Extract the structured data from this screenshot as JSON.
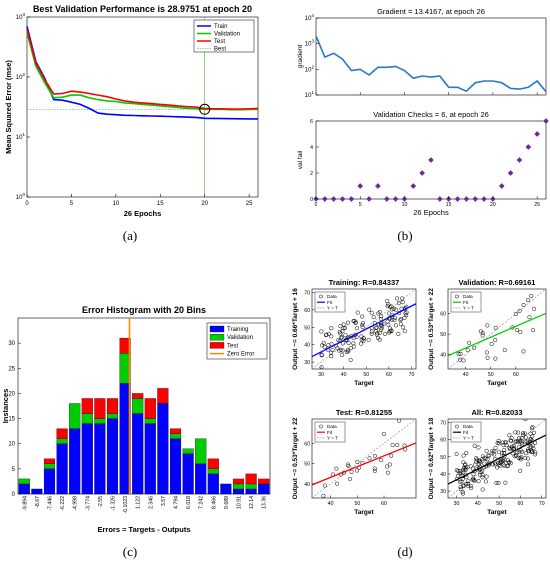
{
  "captions": {
    "a": "(a)",
    "b": "(b)",
    "c": "(c)",
    "d": "(d)"
  },
  "colors": {
    "train": "#0000ff",
    "validation": "#00cc00",
    "test": "#ff0000",
    "best": "#2ca02c",
    "zero_error": "#ff8800",
    "reg_fit_validation": "#00cc00",
    "gradient_line": "#2878c8",
    "fail_marker": "#8c1c8c"
  },
  "chart_data": [
    {
      "id": "performance",
      "type": "line",
      "title": "Best Validation Performance is 28.9751 at epoch 20",
      "xlabel": "26 Epochs",
      "ylabel": "Mean Squared Error  (mse)",
      "yscale": "log",
      "xlim": [
        0,
        26
      ],
      "ylim": [
        1,
        1000
      ],
      "xticks": [
        "0",
        "5",
        "10",
        "15",
        "20",
        "25"
      ],
      "yticks": [
        {
          "base": "10",
          "exp": "0"
        },
        {
          "base": "10",
          "exp": "1"
        },
        {
          "base": "10",
          "exp": "2"
        },
        {
          "base": "10",
          "exp": "3"
        }
      ],
      "legend_position": "top-right",
      "legend": [
        "Train",
        "Validation",
        "Test",
        "Best"
      ],
      "x": [
        0,
        1,
        2,
        3,
        4,
        5,
        6,
        7,
        8,
        9,
        10,
        11,
        12,
        13,
        14,
        15,
        16,
        17,
        18,
        19,
        20,
        21,
        22,
        23,
        24,
        25,
        26
      ],
      "series": [
        {
          "name": "Train",
          "values": [
            700,
            180,
            95,
            42,
            41,
            38,
            35,
            30,
            25,
            24,
            23.5,
            23,
            22.8,
            22.6,
            22.4,
            22.2,
            22,
            21.7,
            21.5,
            21.2,
            20.5,
            20.4,
            20.3,
            20.2,
            20.1,
            20,
            20
          ]
        },
        {
          "name": "Validation",
          "values": [
            550,
            150,
            80,
            45,
            46,
            50,
            50,
            45,
            42,
            40,
            39,
            37,
            36,
            35,
            34,
            33,
            32,
            31,
            30,
            29.5,
            28.9751,
            29,
            29,
            28.5,
            28.5,
            28.7,
            29
          ]
        },
        {
          "name": "Test",
          "values": [
            620,
            170,
            90,
            52,
            53,
            58,
            56,
            53,
            50,
            47,
            43,
            40,
            38,
            37,
            36,
            35,
            34,
            33,
            32,
            31.5,
            30,
            29.5,
            29.5,
            29.2,
            29.3,
            29.5,
            30
          ]
        }
      ],
      "best": {
        "epoch": 20,
        "value": 28.9751
      }
    },
    {
      "id": "gradient",
      "type": "line",
      "title": "Gradient = 13.4167, at epoch 26",
      "ylabel": "gradient",
      "yscale": "log",
      "xlim": [
        0,
        26
      ],
      "ylim": [
        10,
        10000
      ],
      "yticks": [
        {
          "base": "10",
          "exp": "1"
        },
        {
          "base": "10",
          "exp": "2"
        },
        {
          "base": "10",
          "exp": "3"
        },
        {
          "base": "10",
          "exp": "4"
        }
      ],
      "x": [
        0,
        1,
        2,
        3,
        4,
        5,
        6,
        7,
        8,
        9,
        10,
        11,
        12,
        13,
        14,
        15,
        16,
        17,
        18,
        19,
        20,
        21,
        22,
        23,
        24,
        25,
        26
      ],
      "values": [
        2000,
        300,
        420,
        250,
        90,
        100,
        60,
        120,
        120,
        130,
        90,
        45,
        55,
        50,
        55,
        20,
        20,
        14,
        30,
        35,
        35,
        30,
        18,
        17,
        20,
        35,
        13.4167
      ]
    },
    {
      "id": "validation_checks",
      "type": "scatter",
      "title": "Validation Checks = 6, at epoch 26",
      "xlabel": "26 Epochs",
      "ylabel": "val fail",
      "xlim": [
        0,
        26
      ],
      "ylim": [
        0,
        6
      ],
      "xticks": [
        "0",
        "5",
        "10",
        "15",
        "20",
        "25"
      ],
      "yticks": [
        "0",
        "2",
        "4",
        "6"
      ],
      "x": [
        0,
        1,
        2,
        3,
        4,
        5,
        6,
        7,
        8,
        9,
        10,
        11,
        12,
        13,
        14,
        15,
        16,
        17,
        18,
        19,
        20,
        21,
        22,
        23,
        24,
        25,
        26
      ],
      "values": [
        0,
        0,
        0,
        0,
        0,
        1,
        0,
        1,
        0,
        0,
        0,
        1,
        2,
        3,
        0,
        0,
        0,
        0,
        0,
        0,
        0,
        1,
        2,
        3,
        4,
        5,
        6
      ]
    },
    {
      "id": "error_histogram",
      "type": "bar",
      "title": "Error Histogram with 20 Bins",
      "xlabel": "Errors = Targets - Outputs",
      "ylabel": "Instances",
      "ylim": [
        0,
        35
      ],
      "yticks": [
        "0",
        "5",
        "10",
        "15",
        "20",
        "25",
        "30"
      ],
      "legend_position": "top-right",
      "legend": [
        "Training",
        "Validation",
        "Test",
        "Zero Error"
      ],
      "categories": [
        "-9.894",
        "-8.67",
        "-7.446",
        "-6.222",
        "-4.998",
        "-3.774",
        "-2.55",
        "-1.326",
        "-0.1023",
        "1.122",
        "2.346",
        "3.57",
        "4.794",
        "6.018",
        "7.242",
        "8.466",
        "9.689",
        "10.91",
        "12.14",
        "13.36"
      ],
      "series": [
        {
          "name": "Training",
          "values": [
            2,
            1,
            5,
            10,
            13,
            14,
            14,
            15,
            22,
            16,
            14,
            18,
            11,
            8,
            6,
            4,
            2,
            1,
            1,
            2
          ]
        },
        {
          "name": "Validation",
          "values": [
            1,
            0,
            1,
            1,
            5,
            2,
            1,
            1,
            6,
            3,
            1,
            0,
            1,
            1,
            5,
            1,
            0,
            1,
            1,
            0
          ]
        },
        {
          "name": "Test",
          "values": [
            0,
            0,
            1,
            2,
            0,
            3,
            4,
            3,
            3,
            1,
            4,
            3,
            1,
            0,
            0,
            2,
            0,
            1,
            2,
            1
          ]
        }
      ],
      "zero_error_category_index": 9
    },
    {
      "id": "regression_training",
      "type": "scatter",
      "title": "Training: R=0.84337",
      "xlabel": "Target",
      "ylabel": "Output ~= 0.66*Target + 16",
      "xlim": [
        26,
        72
      ],
      "ylim": [
        26,
        72
      ],
      "xticks": [
        "30",
        "40",
        "50",
        "60",
        "70"
      ],
      "yticks": [
        "30",
        "40",
        "50",
        "60",
        "70"
      ],
      "legend": [
        "Data",
        "Fit",
        "Y = T"
      ],
      "fit": {
        "slope": 0.66,
        "intercept": 16
      }
    },
    {
      "id": "regression_validation",
      "type": "scatter",
      "title": "Validation: R=0.69161",
      "xlabel": "Target",
      "ylabel": "Output ~= 0.53*Target + 22",
      "xlim": [
        33,
        72
      ],
      "ylim": [
        33,
        72
      ],
      "xticks": [
        "40",
        "50",
        "60"
      ],
      "yticks": [
        "40",
        "50",
        "60"
      ],
      "legend": [
        "Data",
        "Fit",
        "Y = T"
      ],
      "fit": {
        "slope": 0.53,
        "intercept": 22
      }
    },
    {
      "id": "regression_test",
      "type": "scatter",
      "title": "Test: R=0.81255",
      "xlabel": "Target",
      "ylabel": "Output ~= 0.53*Target + 22",
      "xlim": [
        33,
        72
      ],
      "ylim": [
        33,
        72
      ],
      "xticks": [
        "40",
        "50",
        "60"
      ],
      "yticks": [
        "40",
        "50",
        "60"
      ],
      "legend": [
        "Data",
        "Fit",
        "Y = T"
      ],
      "fit": {
        "slope": 0.53,
        "intercept": 22
      }
    },
    {
      "id": "regression_all",
      "type": "scatter",
      "title": "All: R=0.82033",
      "xlabel": "Target",
      "ylabel": "Output ~= 0.62*Target + 18",
      "xlim": [
        26,
        72
      ],
      "ylim": [
        26,
        72
      ],
      "xticks": [
        "30",
        "40",
        "50",
        "60",
        "70"
      ],
      "yticks": [
        "30",
        "40",
        "50",
        "60",
        "70"
      ],
      "legend": [
        "Data",
        "Fit",
        "Y = T"
      ],
      "fit": {
        "slope": 0.62,
        "intercept": 18
      }
    }
  ]
}
